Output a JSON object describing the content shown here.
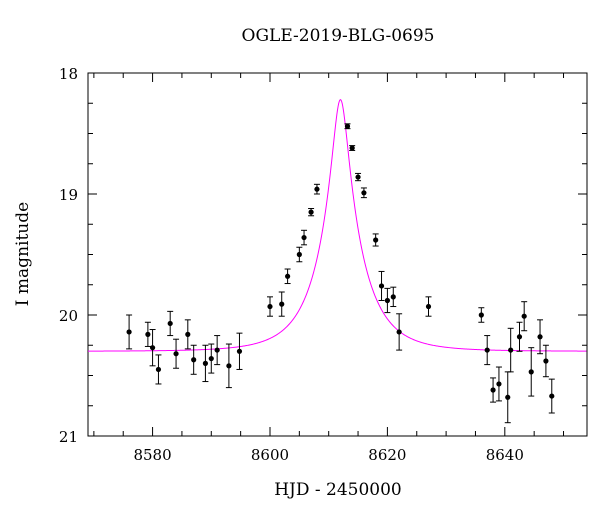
{
  "chart_data": {
    "type": "scatter",
    "title": "OGLE-2019-BLG-0695",
    "xlabel": "HJD - 2450000",
    "ylabel": "I magnitude",
    "xlim": [
      8569,
      8654
    ],
    "ylim": [
      21.0,
      18.0
    ],
    "y_inverted": true,
    "grid": false,
    "x_ticks": [
      8580,
      8600,
      8620,
      8640
    ],
    "y_ticks": [
      18,
      19,
      20,
      21
    ],
    "x_minor_step": 5,
    "y_minor_step": 0.25,
    "series": [
      {
        "kind": "points_with_errorbars",
        "color": "#000000",
        "x": [
          8576.0,
          8579.2,
          8580.0,
          8581.0,
          8583.0,
          8584.0,
          8586.0,
          8587.0,
          8589.0,
          8590.0,
          8591.0,
          8593.0,
          8594.8,
          8600.0,
          8602.0,
          8603.0,
          8605.0,
          8605.8,
          8607.0,
          8608.0,
          8613.2,
          8614.0,
          8615.0,
          8616.0,
          8618.0,
          8619.0,
          8620.0,
          8621.0,
          8622.0,
          8627.0,
          8636.0,
          8637.0,
          8638.0,
          8639.0,
          8640.5,
          8641.0,
          8642.5,
          8643.3,
          8644.5,
          8646.0,
          8647.0,
          8648.0
        ],
        "y": [
          20.14,
          20.16,
          20.27,
          20.45,
          20.07,
          20.32,
          20.16,
          20.37,
          20.4,
          20.36,
          20.29,
          20.42,
          20.3,
          19.93,
          19.91,
          19.68,
          19.5,
          19.36,
          19.15,
          18.96,
          18.44,
          18.62,
          18.86,
          18.99,
          19.38,
          19.76,
          19.88,
          19.85,
          20.14,
          19.93,
          20.0,
          20.29,
          20.62,
          20.57,
          20.68,
          20.29,
          20.18,
          20.01,
          20.47,
          20.18,
          20.38,
          20.67
        ],
        "err": [
          0.14,
          0.1,
          0.15,
          0.12,
          0.1,
          0.12,
          0.12,
          0.12,
          0.15,
          0.12,
          0.12,
          0.18,
          0.15,
          0.08,
          0.1,
          0.06,
          0.06,
          0.06,
          0.03,
          0.04,
          0.02,
          0.02,
          0.03,
          0.04,
          0.05,
          0.12,
          0.1,
          0.08,
          0.15,
          0.08,
          0.06,
          0.12,
          0.1,
          0.14,
          0.21,
          0.18,
          0.12,
          0.12,
          0.2,
          0.14,
          0.13,
          0.14
        ]
      },
      {
        "kind": "model_curve",
        "color": "#ff00ff",
        "x_peak": 8612.0,
        "y_peak": 18.22,
        "y_baseline": 20.3,
        "t_E": 7.0,
        "u0": 0.18
      }
    ]
  }
}
